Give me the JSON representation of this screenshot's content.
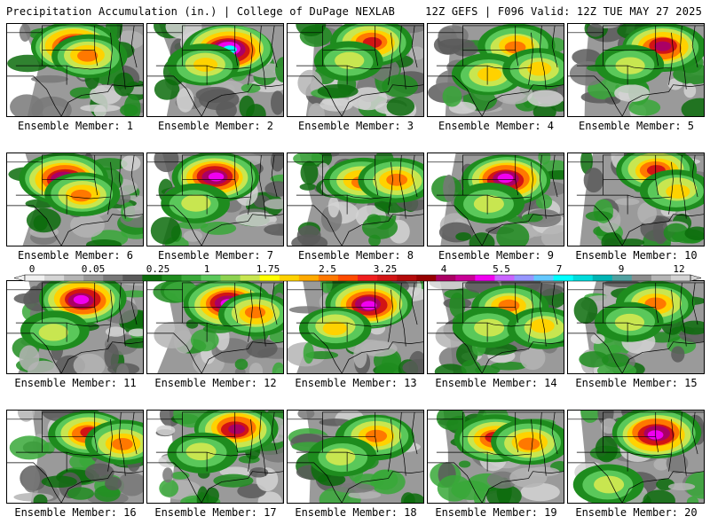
{
  "header": {
    "left_title": "Precipitation Accumulation (in.) | College of DuPage NEXLAB",
    "right_title": "12Z GEFS | F096 Valid: 12Z TUE MAY 27 2025"
  },
  "members": [
    {
      "label": "Ensemble Member: 1",
      "cores": [
        [
          0.5,
          0.25,
          0.9
        ],
        [
          0.6,
          0.35,
          0.5
        ]
      ]
    },
    {
      "label": "Ensemble Member: 2",
      "cores": [
        [
          0.6,
          0.28,
          0.95
        ],
        [
          0.42,
          0.45,
          0.4
        ]
      ]
    },
    {
      "label": "Ensemble Member: 3",
      "cores": [
        [
          0.62,
          0.2,
          0.7
        ],
        [
          0.45,
          0.4,
          0.3
        ]
      ]
    },
    {
      "label": "Ensemble Member: 4",
      "cores": [
        [
          0.65,
          0.25,
          0.55
        ],
        [
          0.45,
          0.55,
          0.4
        ],
        [
          0.82,
          0.5,
          0.4
        ]
      ]
    },
    {
      "label": "Ensemble Member: 5",
      "cores": [
        [
          0.7,
          0.25,
          0.75
        ],
        [
          0.45,
          0.45,
          0.3
        ]
      ]
    },
    {
      "label": "Ensemble Member: 6",
      "cores": [
        [
          0.42,
          0.28,
          0.9
        ],
        [
          0.55,
          0.45,
          0.5
        ]
      ]
    },
    {
      "label": "Ensemble Member: 7",
      "cores": [
        [
          0.5,
          0.25,
          0.85
        ],
        [
          0.35,
          0.55,
          0.3
        ]
      ]
    },
    {
      "label": "Ensemble Member: 8",
      "cores": [
        [
          0.55,
          0.3,
          0.6
        ],
        [
          0.8,
          0.3,
          0.55
        ]
      ]
    },
    {
      "label": "Ensemble Member: 9",
      "cores": [
        [
          0.58,
          0.28,
          0.9
        ],
        [
          0.45,
          0.55,
          0.35
        ]
      ]
    },
    {
      "label": "Ensemble Member: 10",
      "cores": [
        [
          0.65,
          0.18,
          0.65
        ],
        [
          0.8,
          0.4,
          0.4
        ]
      ]
    },
    {
      "label": "Ensemble Member: 11",
      "cores": [
        [
          0.55,
          0.2,
          0.85
        ],
        [
          0.35,
          0.55,
          0.3
        ]
      ]
    },
    {
      "label": "Ensemble Member: 12",
      "cores": [
        [
          0.6,
          0.25,
          0.9
        ],
        [
          0.8,
          0.35,
          0.5
        ]
      ]
    },
    {
      "label": "Ensemble Member: 13",
      "cores": [
        [
          0.6,
          0.25,
          0.85
        ],
        [
          0.35,
          0.5,
          0.4
        ]
      ]
    },
    {
      "label": "Ensemble Member: 14",
      "cores": [
        [
          0.6,
          0.28,
          0.55
        ],
        [
          0.45,
          0.5,
          0.35
        ],
        [
          0.85,
          0.5,
          0.4
        ]
      ]
    },
    {
      "label": "Ensemble Member: 15",
      "cores": [
        [
          0.65,
          0.25,
          0.6
        ],
        [
          0.45,
          0.45,
          0.3
        ]
      ]
    },
    {
      "label": "Ensemble Member: 16",
      "cores": [
        [
          0.6,
          0.25,
          0.65
        ],
        [
          0.85,
          0.35,
          0.55
        ]
      ]
    },
    {
      "label": "Ensemble Member: 17",
      "cores": [
        [
          0.65,
          0.2,
          0.75
        ],
        [
          0.4,
          0.45,
          0.35
        ]
      ]
    },
    {
      "label": "Ensemble Member: 18",
      "cores": [
        [
          0.65,
          0.28,
          0.6
        ],
        [
          0.4,
          0.5,
          0.3
        ]
      ]
    },
    {
      "label": "Ensemble Member: 19",
      "cores": [
        [
          0.5,
          0.3,
          0.7
        ],
        [
          0.75,
          0.35,
          0.6
        ]
      ]
    },
    {
      "label": "Ensemble Member: 20",
      "cores": [
        [
          0.65,
          0.25,
          0.9
        ],
        [
          0.3,
          0.8,
          0.35
        ]
      ]
    }
  ],
  "colorbar": {
    "ticks": [
      "0",
      "0.05",
      "0.25",
      "1",
      "1.75",
      "2.5",
      "3.25",
      "4",
      "5.5",
      "7",
      "9",
      "12"
    ],
    "colors": [
      "#f0f0f0",
      "#d4d4d4",
      "#b4b4b4",
      "#969696",
      "#787878",
      "#5a5a5a",
      "#0c6c0c",
      "#1e8c1e",
      "#38a838",
      "#5ac85a",
      "#8cd250",
      "#c8e650",
      "#ffff00",
      "#ffd200",
      "#ffaa00",
      "#ff7800",
      "#ff4b00",
      "#f01e1e",
      "#d21414",
      "#b40a0a",
      "#960000",
      "#aa0064",
      "#c80096",
      "#f000f0",
      "#c864ff",
      "#9696ff",
      "#64c8ff",
      "#00ffff",
      "#00dcdc",
      "#00b4b4",
      "#50a0a0",
      "#8c8c8c",
      "#b4b4b4",
      "#d2d2d2"
    ]
  },
  "colors": {
    "background": "#ffffff",
    "missing": "#ffffff",
    "border": "#000000"
  }
}
